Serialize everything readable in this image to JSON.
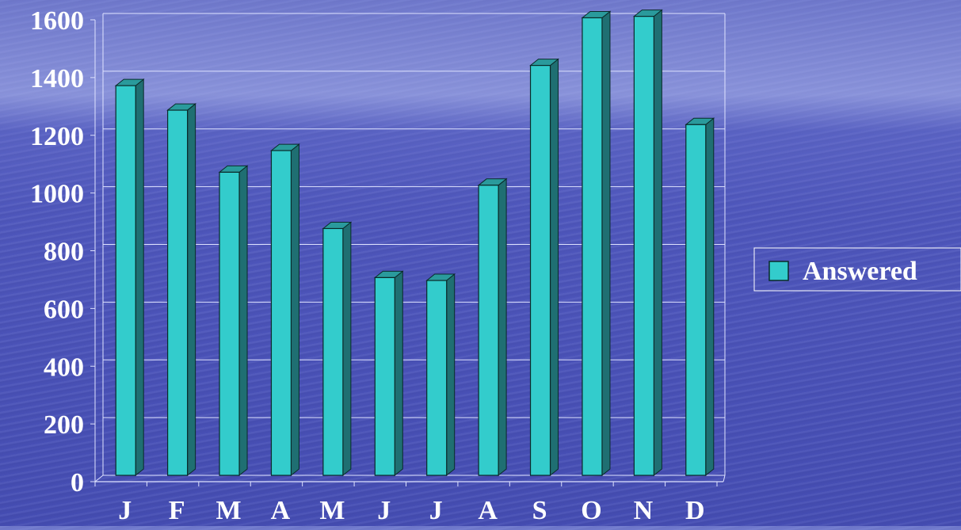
{
  "chart_data": {
    "type": "bar",
    "categories": [
      "J",
      "F",
      "M",
      "A",
      "M",
      "J",
      "J",
      "A",
      "S",
      "O",
      "N",
      "D"
    ],
    "series": [
      {
        "name": "Answered",
        "values": [
          1350,
          1265,
          1050,
          1125,
          855,
          685,
          675,
          1005,
          1420,
          1585,
          1590,
          1215
        ]
      }
    ],
    "ylim": [
      0,
      1600
    ],
    "yticks": [
      0,
      200,
      400,
      600,
      800,
      1000,
      1200,
      1400,
      1600
    ],
    "ytick_labels": [
      "0",
      "200",
      "400",
      "600",
      "800",
      "1000",
      "1200",
      "1400",
      "1600"
    ],
    "title": "",
    "xlabel": "",
    "ylabel": "",
    "grid": true,
    "legend_position": "right",
    "colors": {
      "bar_front": "#33cccc",
      "bar_side": "#1f6f72",
      "bar_top": "#2a9a9c",
      "bar_edge": "#0a2a2a",
      "grid": "#dfe3ff",
      "text": "#ffffff"
    }
  }
}
